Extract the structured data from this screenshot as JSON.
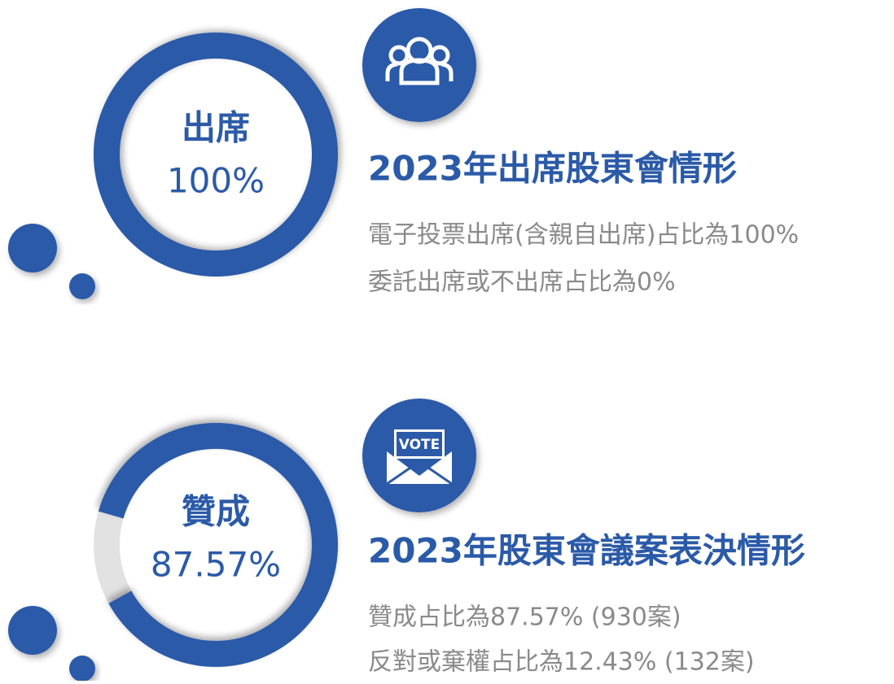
{
  "sections": [
    {
      "ring": {
        "label": "出席",
        "value": 100,
        "value_label": "100%"
      },
      "title": "2023年出席股東會情形",
      "lines": [
        "電子投票出席(含親自出席)占比為100%",
        "委託出席或不出席占比為0%"
      ]
    },
    {
      "ring": {
        "label": "贊成",
        "value": 87.57,
        "value_label": "87.57%"
      },
      "icon_text": "VOTE",
      "title": "2023年股東會議案表決情形",
      "lines": [
        "贊成占比為87.57% (930案)",
        "反對或棄權占比為12.43% (132案)"
      ]
    }
  ]
}
